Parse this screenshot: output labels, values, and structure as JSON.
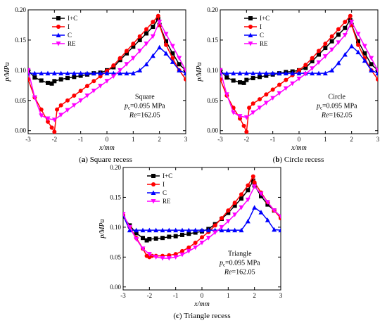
{
  "colors": {
    "I+C": "#000000",
    "I": "#ff0000",
    "C": "#0000ff",
    "RE": "#ff00ff"
  },
  "markers": {
    "I+C": "square",
    "I": "circle",
    "C": "triangle-up",
    "RE": "triangle-down"
  },
  "chart_data": [
    {
      "type": "line",
      "caption_label": "(a)",
      "caption_text": "Square recess",
      "xlabel": "x/mm",
      "ylabel": "p/MPa",
      "xlim": [
        -3,
        3
      ],
      "ylim": [
        -0.005,
        0.2
      ],
      "xticks": [
        "-3",
        "-2",
        "-1",
        "0",
        "1",
        "2",
        "3"
      ],
      "yticks": [
        "0.00",
        "0.05",
        "0.10",
        "0.15",
        "0.20"
      ],
      "legend": "top-left",
      "annotation": {
        "shape": "Square",
        "p_sub": "c",
        "pressure": "=0.095 MPa",
        "re_label": "Re",
        "re_value": "=162.05"
      },
      "series": [
        {
          "name": "I+C",
          "x": [
            -3,
            -2.75,
            -2.5,
            -2.25,
            -2.1,
            -2,
            -1.75,
            -1.5,
            -1.25,
            -1,
            -0.75,
            -0.5,
            -0.25,
            0,
            0.25,
            0.5,
            0.75,
            1,
            1.25,
            1.5,
            1.75,
            1.95,
            2,
            2.25,
            2.5,
            2.75,
            3
          ],
          "y": [
            0.1,
            0.088,
            0.083,
            0.079,
            0.078,
            0.082,
            0.085,
            0.087,
            0.089,
            0.091,
            0.093,
            0.095,
            0.096,
            0.1,
            0.105,
            0.117,
            0.128,
            0.139,
            0.15,
            0.161,
            0.172,
            0.185,
            0.175,
            0.148,
            0.128,
            0.11,
            0.1
          ]
        },
        {
          "name": "I",
          "x": [
            -3,
            -2.75,
            -2.5,
            -2.25,
            -2.1,
            -2,
            -1.9,
            -1.75,
            -1.5,
            -1.25,
            -1,
            -0.75,
            -0.5,
            -0.25,
            0,
            0.25,
            0.5,
            0.75,
            1,
            1.25,
            1.5,
            1.75,
            1.95,
            2,
            2.25,
            2.5,
            2.75,
            3
          ],
          "y": [
            0.085,
            0.055,
            0.035,
            0.015,
            0.005,
            -0.002,
            0.035,
            0.042,
            0.05,
            0.058,
            0.066,
            0.074,
            0.082,
            0.09,
            0.099,
            0.108,
            0.12,
            0.132,
            0.144,
            0.156,
            0.168,
            0.18,
            0.19,
            0.175,
            0.142,
            0.12,
            0.1,
            0.085
          ]
        },
        {
          "name": "C",
          "x": [
            -3,
            -2.75,
            -2.5,
            -2.25,
            -2,
            -1.75,
            -1.5,
            -1.25,
            -1,
            -0.75,
            -0.5,
            -0.25,
            0,
            0.25,
            0.5,
            0.75,
            1,
            1.25,
            1.5,
            1.75,
            2,
            2.25,
            2.5,
            2.75,
            3
          ],
          "y": [
            0.095,
            0.095,
            0.095,
            0.095,
            0.095,
            0.095,
            0.095,
            0.095,
            0.095,
            0.095,
            0.095,
            0.095,
            0.095,
            0.095,
            0.095,
            0.095,
            0.095,
            0.1,
            0.11,
            0.124,
            0.138,
            0.128,
            0.114,
            0.1,
            0.095
          ]
        },
        {
          "name": "RE",
          "x": [
            -3,
            -2.75,
            -2.5,
            -2.25,
            -2,
            -1.75,
            -1.5,
            -1.25,
            -1,
            -0.75,
            -0.5,
            -0.25,
            0,
            0.25,
            0.5,
            0.75,
            1,
            1.25,
            1.5,
            1.75,
            2,
            2.25,
            2.5,
            2.75,
            3
          ],
          "y": [
            0.1,
            0.055,
            0.025,
            0.02,
            0.018,
            0.026,
            0.034,
            0.042,
            0.05,
            0.058,
            0.066,
            0.074,
            0.082,
            0.09,
            0.1,
            0.11,
            0.12,
            0.132,
            0.144,
            0.156,
            0.18,
            0.16,
            0.14,
            0.12,
            0.1
          ]
        }
      ]
    },
    {
      "type": "line",
      "caption_label": "(b)",
      "caption_text": "Circle recess",
      "xlabel": "x/mm",
      "ylabel": "p/MPa",
      "xlim": [
        -3,
        3
      ],
      "ylim": [
        -0.005,
        0.2
      ],
      "xticks": [
        "-3",
        "-2",
        "-1",
        "0",
        "1",
        "2",
        "3"
      ],
      "yticks": [
        "0.00",
        "0.05",
        "0.10",
        "0.15",
        "0.20"
      ],
      "legend": "top-left",
      "annotation": {
        "shape": "Circle",
        "p_sub": "c",
        "pressure": "=0.095 MPa",
        "re_label": "Re",
        "re_value": "=162.05"
      },
      "series": [
        {
          "name": "I+C",
          "x": [
            -3,
            -2.75,
            -2.5,
            -2.25,
            -2.1,
            -2,
            -1.75,
            -1.5,
            -1.25,
            -1,
            -0.75,
            -0.5,
            -0.25,
            0,
            0.25,
            0.5,
            0.75,
            1,
            1.25,
            1.5,
            1.75,
            1.95,
            2,
            2.25,
            2.5,
            2.75,
            3
          ],
          "y": [
            0.1,
            0.088,
            0.083,
            0.08,
            0.079,
            0.084,
            0.087,
            0.089,
            0.091,
            0.093,
            0.095,
            0.097,
            0.098,
            0.1,
            0.104,
            0.115,
            0.126,
            0.137,
            0.148,
            0.159,
            0.17,
            0.183,
            0.175,
            0.148,
            0.128,
            0.11,
            0.1
          ]
        },
        {
          "name": "I",
          "x": [
            -3,
            -2.75,
            -2.5,
            -2.25,
            -2.1,
            -2,
            -1.9,
            -1.75,
            -1.5,
            -1.25,
            -1,
            -0.75,
            -0.5,
            -0.25,
            0,
            0.25,
            0.5,
            0.75,
            1,
            1.25,
            1.5,
            1.75,
            1.95,
            2,
            2.25,
            2.5,
            2.75,
            3
          ],
          "y": [
            0.085,
            0.058,
            0.038,
            0.02,
            0.008,
            -0.002,
            0.038,
            0.045,
            0.052,
            0.06,
            0.068,
            0.076,
            0.084,
            0.092,
            0.1,
            0.109,
            0.12,
            0.132,
            0.144,
            0.156,
            0.168,
            0.18,
            0.19,
            0.175,
            0.142,
            0.12,
            0.1,
            0.085
          ]
        },
        {
          "name": "C",
          "x": [
            -3,
            -2.75,
            -2.5,
            -2.25,
            -2,
            -1.75,
            -1.5,
            -1.25,
            -1,
            -0.75,
            -0.5,
            -0.25,
            0,
            0.25,
            0.5,
            0.75,
            1,
            1.25,
            1.5,
            1.75,
            2,
            2.25,
            2.5,
            2.75,
            3
          ],
          "y": [
            0.095,
            0.095,
            0.095,
            0.095,
            0.095,
            0.095,
            0.095,
            0.095,
            0.095,
            0.095,
            0.095,
            0.095,
            0.095,
            0.095,
            0.095,
            0.095,
            0.095,
            0.1,
            0.112,
            0.126,
            0.14,
            0.13,
            0.116,
            0.1,
            0.095
          ]
        },
        {
          "name": "RE",
          "x": [
            -3,
            -2.75,
            -2.5,
            -2.25,
            -2,
            -1.75,
            -1.5,
            -1.25,
            -1,
            -0.75,
            -0.5,
            -0.25,
            0,
            0.25,
            0.5,
            0.75,
            1,
            1.25,
            1.5,
            1.75,
            2,
            2.25,
            2.5,
            2.75,
            3
          ],
          "y": [
            0.1,
            0.06,
            0.03,
            0.024,
            0.022,
            0.03,
            0.038,
            0.046,
            0.054,
            0.062,
            0.07,
            0.078,
            0.086,
            0.094,
            0.103,
            0.113,
            0.123,
            0.134,
            0.146,
            0.158,
            0.18,
            0.16,
            0.14,
            0.12,
            0.1
          ]
        }
      ]
    },
    {
      "type": "line",
      "caption_label": "(c)",
      "caption_text": "Triangle recess",
      "xlabel": "x/mm",
      "ylabel": "p/MPa",
      "xlim": [
        -3,
        3
      ],
      "ylim": [
        -0.005,
        0.2
      ],
      "xticks": [
        "-3",
        "-2",
        "-1",
        "0",
        "1",
        "2",
        "3"
      ],
      "yticks": [
        "0.00",
        "0.05",
        "0.10",
        "0.15",
        "0.20"
      ],
      "legend": "top-left",
      "annotation": {
        "shape": "Triangle",
        "p_sub": "c",
        "pressure": "=0.095 MPa",
        "re_label": "Re",
        "re_value": "=162.05"
      },
      "series": [
        {
          "name": "I+C",
          "x": [
            -3,
            -2.75,
            -2.5,
            -2.25,
            -2.1,
            -2,
            -1.75,
            -1.5,
            -1.25,
            -1,
            -0.75,
            -0.5,
            -0.25,
            0,
            0.25,
            0.5,
            0.75,
            1,
            1.25,
            1.5,
            1.75,
            1.95,
            2,
            2.25,
            2.5,
            2.75,
            3
          ],
          "y": [
            0.118,
            0.103,
            0.09,
            0.082,
            0.078,
            0.08,
            0.081,
            0.082,
            0.084,
            0.085,
            0.087,
            0.089,
            0.091,
            0.093,
            0.097,
            0.105,
            0.114,
            0.124,
            0.136,
            0.148,
            0.162,
            0.178,
            0.17,
            0.152,
            0.138,
            0.128,
            0.118
          ]
        },
        {
          "name": "I",
          "x": [
            -3,
            -2.75,
            -2.5,
            -2.25,
            -2.1,
            -2,
            -1.9,
            -1.75,
            -1.5,
            -1.25,
            -1,
            -0.75,
            -0.5,
            -0.25,
            0,
            0.25,
            0.5,
            0.75,
            1,
            1.25,
            1.5,
            1.75,
            1.95,
            2,
            2.25,
            2.5,
            2.75,
            3
          ],
          "y": [
            0.12,
            0.1,
            0.082,
            0.064,
            0.052,
            0.05,
            0.052,
            0.052,
            0.052,
            0.053,
            0.055,
            0.06,
            0.066,
            0.074,
            0.083,
            0.092,
            0.103,
            0.115,
            0.128,
            0.141,
            0.155,
            0.17,
            0.185,
            0.175,
            0.158,
            0.142,
            0.128,
            0.115
          ]
        },
        {
          "name": "C",
          "x": [
            -3,
            -2.75,
            -2.5,
            -2.25,
            -2,
            -1.75,
            -1.5,
            -1.25,
            -1,
            -0.75,
            -0.5,
            -0.25,
            0,
            0.25,
            0.5,
            0.75,
            1,
            1.25,
            1.5,
            1.75,
            2,
            2.25,
            2.5,
            2.75,
            3
          ],
          "y": [
            0.12,
            0.095,
            0.095,
            0.095,
            0.095,
            0.095,
            0.095,
            0.095,
            0.095,
            0.095,
            0.095,
            0.095,
            0.095,
            0.095,
            0.095,
            0.095,
            0.095,
            0.095,
            0.095,
            0.11,
            0.133,
            0.125,
            0.112,
            0.096,
            0.095
          ]
        },
        {
          "name": "RE",
          "x": [
            -3,
            -2.75,
            -2.5,
            -2.25,
            -2,
            -1.75,
            -1.5,
            -1.25,
            -1,
            -0.75,
            -0.5,
            -0.25,
            0,
            0.25,
            0.5,
            0.75,
            1,
            1.25,
            1.5,
            1.75,
            2,
            2.25,
            2.5,
            2.75,
            3
          ],
          "y": [
            0.122,
            0.1,
            0.08,
            0.064,
            0.055,
            0.05,
            0.048,
            0.048,
            0.05,
            0.054,
            0.06,
            0.066,
            0.074,
            0.082,
            0.091,
            0.1,
            0.11,
            0.121,
            0.133,
            0.146,
            0.168,
            0.156,
            0.142,
            0.128,
            0.118
          ]
        }
      ]
    }
  ]
}
